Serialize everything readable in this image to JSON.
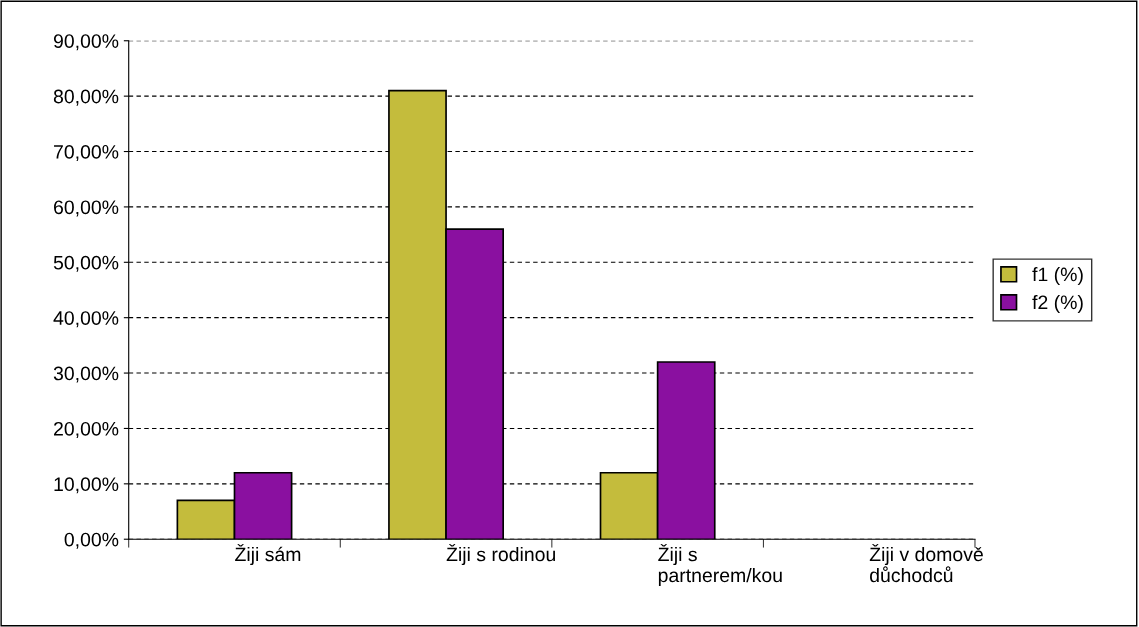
{
  "chart_data": {
    "type": "bar",
    "categories": [
      "Žiji sám",
      "Žiji s rodinou",
      "Žiji s\npartnerem/kou",
      "Žiji v domově\ndůchodců"
    ],
    "series": [
      {
        "name": "f1 (%)",
        "color": "#c4bc3c",
        "values": [
          7,
          81,
          12,
          null
        ]
      },
      {
        "name": "f2 (%)",
        "color": "#8a10a0",
        "values": [
          12,
          56,
          32,
          null
        ]
      }
    ],
    "ylim": [
      0,
      90
    ],
    "yticks": [
      {
        "value": 0,
        "label": "0,00%"
      },
      {
        "value": 10,
        "label": "10,00%"
      },
      {
        "value": 20,
        "label": "20,00%"
      },
      {
        "value": 30,
        "label": "30,00%"
      },
      {
        "value": 40,
        "label": "40,00%"
      },
      {
        "value": 50,
        "label": "50,00%"
      },
      {
        "value": 60,
        "label": "60,00%"
      },
      {
        "value": 70,
        "label": "70,00%"
      },
      {
        "value": 80,
        "label": "80,00%"
      },
      {
        "value": 90,
        "label": "90,00%"
      }
    ],
    "grid": "y",
    "line_style": "dashed",
    "legend": "right"
  }
}
